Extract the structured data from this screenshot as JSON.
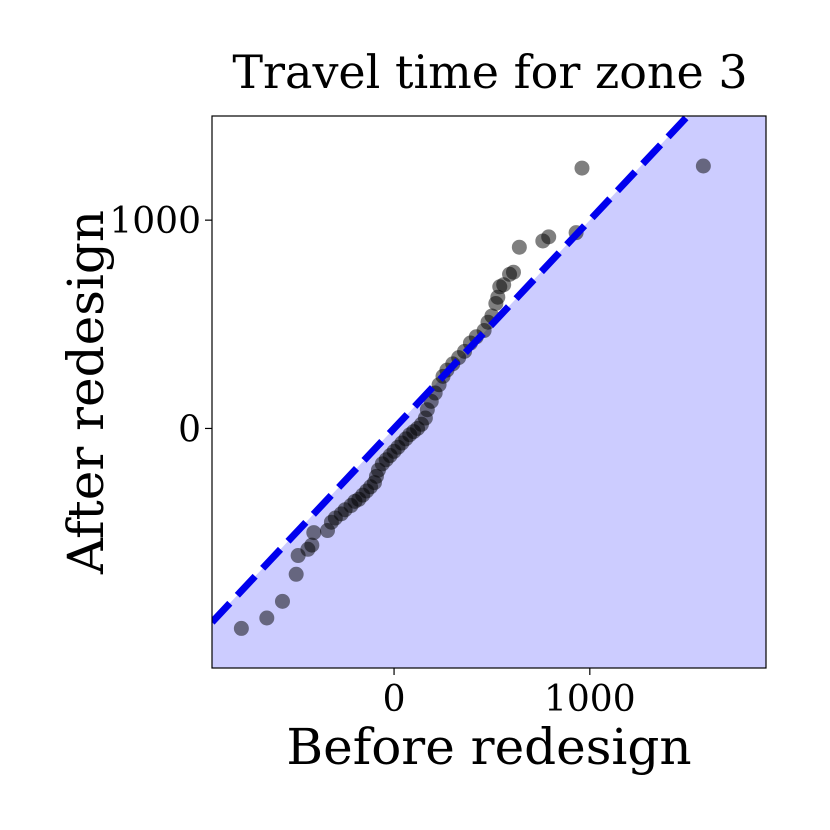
{
  "chart_data": {
    "type": "scatter",
    "title": "Travel time for zone 3",
    "xlabel": "Before redesign",
    "ylabel": "After redesign",
    "xlim": [
      -930,
      1900
    ],
    "ylim": [
      -1150,
      1500
    ],
    "xticks": [
      0,
      1000
    ],
    "yticks": [
      0,
      1000
    ],
    "xtick_labels": [
      "0",
      "1000"
    ],
    "ytick_labels": [
      "0",
      "1000"
    ],
    "grid": false,
    "reference_line": {
      "type": "y=x",
      "style": "dashed",
      "color": "#0000ee"
    },
    "shaded_region": {
      "description": "below y=x",
      "color": "#ccccff"
    },
    "colors": {
      "points": "#000000",
      "line": "#0000ee",
      "region": "#ccccff"
    },
    "points": [
      [
        -780,
        -960
      ],
      [
        -650,
        -910
      ],
      [
        -570,
        -830
      ],
      [
        -500,
        -700
      ],
      [
        -490,
        -610
      ],
      [
        -440,
        -580
      ],
      [
        -420,
        -560
      ],
      [
        -410,
        -500
      ],
      [
        -340,
        -490
      ],
      [
        -320,
        -450
      ],
      [
        -300,
        -430
      ],
      [
        -270,
        -410
      ],
      [
        -250,
        -390
      ],
      [
        -220,
        -370
      ],
      [
        -200,
        -350
      ],
      [
        -180,
        -340
      ],
      [
        -160,
        -320
      ],
      [
        -140,
        -300
      ],
      [
        -120,
        -280
      ],
      [
        -100,
        -260
      ],
      [
        -90,
        -230
      ],
      [
        -80,
        -200
      ],
      [
        -60,
        -170
      ],
      [
        -40,
        -150
      ],
      [
        -20,
        -130
      ],
      [
        0,
        -110
      ],
      [
        20,
        -90
      ],
      [
        40,
        -70
      ],
      [
        60,
        -50
      ],
      [
        80,
        -30
      ],
      [
        100,
        -15
      ],
      [
        120,
        0
      ],
      [
        140,
        20
      ],
      [
        160,
        50
      ],
      [
        170,
        90
      ],
      [
        190,
        130
      ],
      [
        210,
        170
      ],
      [
        230,
        210
      ],
      [
        250,
        250
      ],
      [
        270,
        280
      ],
      [
        300,
        310
      ],
      [
        330,
        340
      ],
      [
        360,
        370
      ],
      [
        390,
        410
      ],
      [
        420,
        440
      ],
      [
        460,
        470
      ],
      [
        480,
        510
      ],
      [
        500,
        540
      ],
      [
        520,
        600
      ],
      [
        530,
        630
      ],
      [
        540,
        680
      ],
      [
        560,
        690
      ],
      [
        590,
        740
      ],
      [
        610,
        750
      ],
      [
        640,
        870
      ],
      [
        760,
        900
      ],
      [
        790,
        920
      ],
      [
        930,
        940
      ],
      [
        960,
        1250
      ],
      [
        1580,
        1260
      ]
    ]
  }
}
